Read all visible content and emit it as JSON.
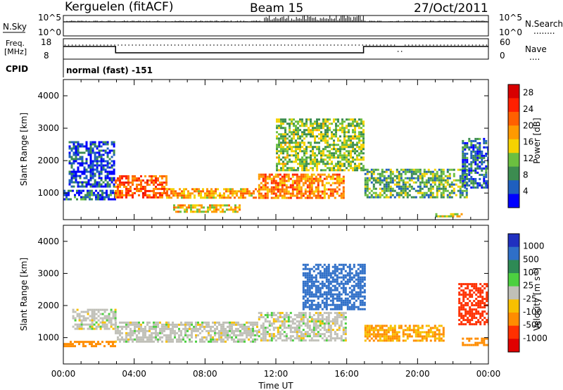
{
  "header": {
    "station": "Kerguelen (fitACF)",
    "beam": "Beam 15",
    "date": "27/Oct/2011"
  },
  "nsky_panel": {
    "label": "N.Sky",
    "right_label": "N.Search",
    "right_marker": "........",
    "left_ticks": [
      "10^5",
      "10^0"
    ],
    "right_ticks": [
      "10^5",
      "10^0"
    ]
  },
  "freq_panel": {
    "label_line1": "Freq.",
    "label_line2": "[MHz]",
    "right_label": "Nave",
    "right_marker": "....",
    "left_ticks": [
      "18",
      "8"
    ],
    "right_ticks": [
      "60",
      "0"
    ]
  },
  "cpid": {
    "label": "CPID",
    "value": "normal (fast) -151"
  },
  "colors": {
    "power_scale": [
      "#0000ff",
      "#1f5fbf",
      "#3c8c50",
      "#6bbf40",
      "#f5d200",
      "#ff9a00",
      "#ff6000",
      "#ff2000",
      "#d80000"
    ],
    "velocity_scale": [
      "#2030c0",
      "#2f6fc8",
      "#2e8a55",
      "#4cd040",
      "#c0c0b8",
      "#f7c000",
      "#ff8c00",
      "#ff3000",
      "#e00000"
    ],
    "ground_scatter": "#c4c4bc"
  },
  "chart_data": [
    {
      "type": "heatmap",
      "title": "",
      "xlabel": "Time UT",
      "ylabel": "Slant Range [km]",
      "x_ticks": [
        "00:00",
        "04:00",
        "08:00",
        "12:00",
        "16:00",
        "20:00",
        "00:00"
      ],
      "xlim_hours": [
        0,
        24
      ],
      "y_ticks": [
        1000,
        2000,
        3000,
        4000
      ],
      "ylim": [
        180,
        4500
      ],
      "colorbar": {
        "label": "Power [dB]",
        "ticks": [
          4,
          8,
          12,
          16,
          20,
          24,
          28
        ],
        "range": [
          0,
          30
        ]
      },
      "regions": [
        {
          "t": [
            0.0,
            2.9
          ],
          "range": [
            800,
            1100
          ],
          "value": 6
        },
        {
          "t": [
            0.3,
            2.9
          ],
          "range": [
            1200,
            2600
          ],
          "value": 4
        },
        {
          "t": [
            2.9,
            5.8
          ],
          "range": [
            850,
            1550
          ],
          "value": 22
        },
        {
          "t": [
            5.8,
            11.0
          ],
          "range": [
            850,
            1150
          ],
          "value": 18
        },
        {
          "t": [
            6.2,
            10.0
          ],
          "range": [
            450,
            650
          ],
          "value": 16
        },
        {
          "t": [
            11.0,
            15.8
          ],
          "range": [
            850,
            1600
          ],
          "value": 20
        },
        {
          "t": [
            12.0,
            17.0
          ],
          "range": [
            1700,
            3300
          ],
          "value": 12
        },
        {
          "t": [
            17.0,
            22.8
          ],
          "range": [
            850,
            1750
          ],
          "value": 10
        },
        {
          "t": [
            21.0,
            22.5
          ],
          "range": [
            280,
            380
          ],
          "value": 14
        },
        {
          "t": [
            22.5,
            24.0
          ],
          "range": [
            1200,
            2700
          ],
          "value": 6
        }
      ]
    },
    {
      "type": "heatmap",
      "title": "",
      "xlabel": "Time UT",
      "ylabel": "Slant Range [km]",
      "x_ticks": [
        "00:00",
        "04:00",
        "08:00",
        "12:00",
        "16:00",
        "20:00",
        "00:00"
      ],
      "xlim_hours": [
        0,
        24
      ],
      "y_ticks": [
        1000,
        2000,
        3000,
        4000
      ],
      "ylim": [
        180,
        4500
      ],
      "colorbar": {
        "label": "Velocity [m s^-1]",
        "ticks": [
          "1000",
          "500",
          "100",
          "25",
          "-25",
          "-100",
          "-500",
          "-1000"
        ],
        "range": [
          -1000,
          1000
        ]
      },
      "regions": [
        {
          "t": [
            0.0,
            2.9
          ],
          "range": [
            750,
            900
          ],
          "value": -200
        },
        {
          "t": [
            0.5,
            2.9
          ],
          "range": [
            1300,
            1900
          ],
          "value": 0
        },
        {
          "t": [
            2.9,
            11.0
          ],
          "range": [
            850,
            1500
          ],
          "value": 0
        },
        {
          "t": [
            11.0,
            16.0
          ],
          "range": [
            900,
            1800
          ],
          "value": 0
        },
        {
          "t": [
            13.5,
            17.0
          ],
          "range": [
            1900,
            3300
          ],
          "value": 150
        },
        {
          "t": [
            17.0,
            21.5
          ],
          "range": [
            900,
            1400
          ],
          "value": -100
        },
        {
          "t": [
            22.3,
            24.0
          ],
          "range": [
            1400,
            2700
          ],
          "value": -400
        },
        {
          "t": [
            22.5,
            24.0
          ],
          "range": [
            750,
            1000
          ],
          "value": -200
        }
      ]
    }
  ]
}
